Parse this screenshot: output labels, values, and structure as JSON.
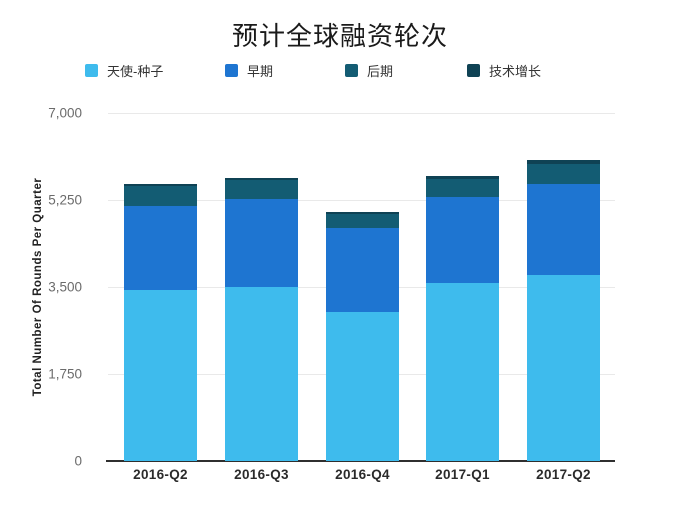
{
  "title": "预计全球融资轮次",
  "chart_data": {
    "type": "bar",
    "stacked": true,
    "title": "预计全球融资轮次",
    "ylabel": "Total Number Of Rounds Per Quarter",
    "xlabel": "",
    "ylim": [
      0,
      7000
    ],
    "yticks": [
      0,
      1750,
      3500,
      5250,
      7000
    ],
    "ytick_labels": [
      "0",
      "1,750",
      "3,500",
      "5,250",
      "7,000"
    ],
    "grid": true,
    "legend_position": "top",
    "categories": [
      "2016-Q2",
      "2016-Q3",
      "2016-Q4",
      "2017-Q1",
      "2017-Q2"
    ],
    "series": [
      {
        "key": "angel-seed",
        "name": "天使-种子",
        "color": "#3EBBED",
        "values": [
          3430,
          3500,
          3000,
          3580,
          3750
        ]
      },
      {
        "key": "early-stage",
        "name": "早期",
        "color": "#1E75D1",
        "values": [
          1700,
          1780,
          1690,
          1730,
          1830
        ]
      },
      {
        "key": "late-stage",
        "name": "后期",
        "color": "#135C73",
        "values": [
          400,
          370,
          280,
          370,
          400
        ]
      },
      {
        "key": "tech-growth",
        "name": "技术增长",
        "color": "#0F4254",
        "values": [
          50,
          50,
          40,
          50,
          70
        ]
      }
    ],
    "totals": [
      5580,
      5700,
      5010,
      5730,
      6050
    ]
  },
  "colors": {
    "background": "#ffffff",
    "gridline": "#e9e9e9",
    "axis_line": "#2f2f2f",
    "tick_text": "#6b6b6b",
    "label_text": "#2b2b2b"
  }
}
